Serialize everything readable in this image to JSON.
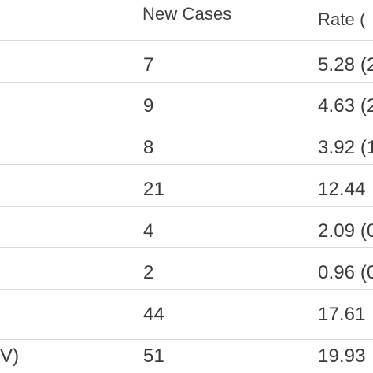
{
  "table": {
    "headers": {
      "left": "",
      "new_cases": "New Cases",
      "rate": "Rate ("
    },
    "rows": [
      {
        "left": "",
        "new_cases": "7",
        "rate": "5.28 (2"
      },
      {
        "left": "",
        "new_cases": "9",
        "rate": "4.63 (2"
      },
      {
        "left": "",
        "new_cases": "8",
        "rate": "3.92 (1"
      },
      {
        "left": "",
        "new_cases": "21",
        "rate": "12.44"
      },
      {
        "left": "",
        "new_cases": "4",
        "rate": "2.09 (0"
      },
      {
        "left": "",
        "new_cases": "2",
        "rate": "0.96 (0"
      },
      {
        "left": "",
        "new_cases": "44",
        "rate": "17.61"
      },
      {
        "left": "V)",
        "new_cases": "51",
        "rate": "19.93"
      }
    ]
  }
}
